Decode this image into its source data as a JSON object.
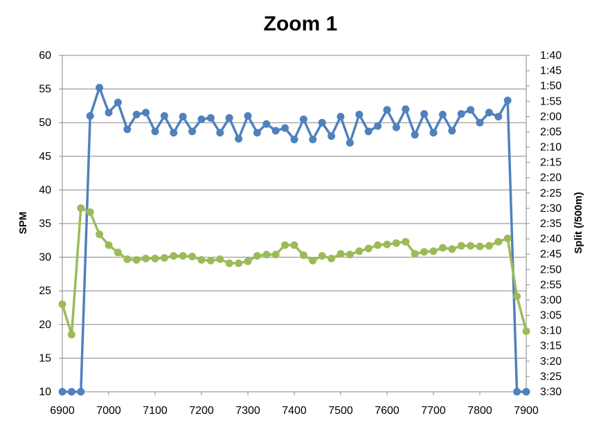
{
  "chart_data": {
    "type": "line",
    "title": "Zoom 1",
    "xlabel": "",
    "ylabel": "SPM",
    "y2label": "Split (/500m)",
    "xlim": [
      6900,
      7900
    ],
    "ylim": [
      10,
      60
    ],
    "y2lim_seconds": [
      150,
      210
    ],
    "grid": true,
    "x_ticks": [
      "6900",
      "7000",
      "7100",
      "7200",
      "7300",
      "7400",
      "7500",
      "7600",
      "7700",
      "7800",
      "7900"
    ],
    "y_ticks": [
      "10",
      "15",
      "20",
      "25",
      "30",
      "35",
      "40",
      "45",
      "50",
      "55",
      "60"
    ],
    "y2_ticks": [
      "1:40",
      "1:45",
      "1:50",
      "1:55",
      "2:00",
      "2:05",
      "2:10",
      "2:15",
      "2:20",
      "2:25",
      "2:30",
      "2:35",
      "2:40",
      "2:45",
      "2:50",
      "2:55",
      "3:00",
      "3:05",
      "3:10",
      "3:15",
      "3:20",
      "3:25",
      "3:30"
    ],
    "x": [
      6900,
      6920,
      6940,
      6960,
      6980,
      7000,
      7020,
      7040,
      7060,
      7080,
      7100,
      7120,
      7140,
      7160,
      7180,
      7200,
      7220,
      7240,
      7260,
      7280,
      7300,
      7320,
      7340,
      7360,
      7380,
      7400,
      7420,
      7440,
      7460,
      7480,
      7500,
      7520,
      7540,
      7560,
      7580,
      7600,
      7620,
      7640,
      7660,
      7680,
      7700,
      7720,
      7740,
      7760,
      7780,
      7800,
      7820,
      7840,
      7860,
      7880,
      7900
    ],
    "series": [
      {
        "axis": "left",
        "color": "#4f81bd",
        "values": [
          10,
          10,
          10,
          51,
          55.2,
          51.5,
          53,
          49,
          51.2,
          51.5,
          48.7,
          51,
          48.5,
          50.9,
          48.7,
          50.5,
          50.7,
          48.5,
          50.7,
          47.6,
          51,
          48.5,
          49.8,
          48.8,
          49.2,
          47.5,
          50.5,
          47.5,
          50,
          48,
          50.9,
          47,
          51.2,
          48.7,
          49.5,
          51.9,
          49.3,
          52,
          48.2,
          51.3,
          48.5,
          51.2,
          48.8,
          51.3,
          51.9,
          50,
          51.5,
          50.9,
          53.3,
          10,
          10
        ]
      },
      {
        "axis": "left",
        "color": "#9bbb59",
        "values": [
          23,
          18.5,
          37.3,
          36.7,
          33.4,
          31.8,
          30.7,
          29.7,
          29.6,
          29.8,
          29.8,
          29.9,
          30.2,
          30.2,
          30.1,
          29.6,
          29.5,
          29.7,
          29.1,
          29.1,
          29.4,
          30.2,
          30.4,
          30.4,
          31.8,
          31.8,
          30.3,
          29.5,
          30.2,
          29.8,
          30.5,
          30.4,
          30.9,
          31.3,
          31.8,
          31.9,
          32.1,
          32.3,
          30.5,
          30.8,
          30.9,
          31.4,
          31.2,
          31.7,
          31.7,
          31.6,
          31.7,
          32.3,
          32.8,
          24.2,
          19
        ]
      }
    ]
  }
}
